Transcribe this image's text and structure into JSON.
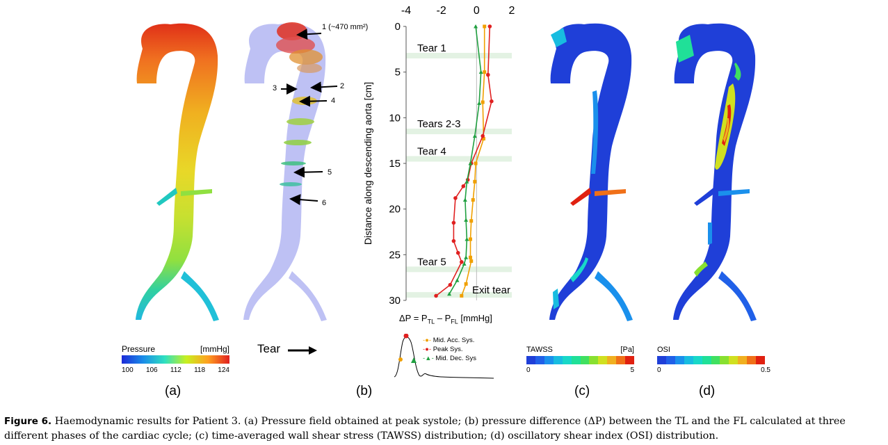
{
  "panels": {
    "a": {
      "label": "(a)",
      "colorbar": {
        "title": "Pressure",
        "unit": "[mmHg]",
        "ticks": [
          "100",
          "106",
          "112",
          "118",
          "124"
        ],
        "colors": [
          "#1c2ad8",
          "#1a8de8",
          "#2fe0c0",
          "#c8f020",
          "#ffa020",
          "#e02020"
        ]
      }
    },
    "b": {
      "label": "(b)",
      "tear_legend": "Tear",
      "slice_labels": [
        "1 (~470 mm²)",
        "2",
        "3",
        "4",
        "5",
        "6"
      ]
    },
    "c": {
      "label": "(c)",
      "colorbar": {
        "title": "TAWSS",
        "unit": "[Pa]",
        "min": "0",
        "max": "5",
        "colors": [
          "#1f3fd8",
          "#2060e8",
          "#1a90ec",
          "#18bce0",
          "#18d8c8",
          "#20e098",
          "#40e060",
          "#88e030",
          "#d0e020",
          "#f0b020",
          "#f07018",
          "#e02010"
        ]
      }
    },
    "d": {
      "label": "(d)",
      "colorbar": {
        "title": "OSI",
        "min": "0",
        "max": "0.5",
        "colors": [
          "#1f3fd8",
          "#2060e8",
          "#1a90ec",
          "#18bce0",
          "#18d8c8",
          "#20e098",
          "#40e060",
          "#88e030",
          "#d0e020",
          "#f0b020",
          "#f07018",
          "#e02010"
        ]
      }
    }
  },
  "chart_data": {
    "type": "line",
    "xlabel_html": "ΔP = P<sub>TL</sub> – P<sub>FL</sub> [mmHg]",
    "ylabel": "Distance along descending aorta  [cm]",
    "x_ticks": [
      "-4",
      "-2",
      "0",
      "2"
    ],
    "y_ticks": [
      "0",
      "5",
      "10",
      "15",
      "20",
      "25",
      "30"
    ],
    "xlim": [
      -4,
      2
    ],
    "ylim": [
      0,
      30
    ],
    "x_axis_position": "top",
    "y_inverted": true,
    "tears": [
      {
        "label": "Tear 1",
        "y": 3.2
      },
      {
        "label": "Tears 2-3",
        "y": 11.5
      },
      {
        "label": "Tear 4",
        "y": 14.5
      },
      {
        "label": "Tear 5",
        "y": 26.6
      },
      {
        "label": "Exit tear",
        "y": 29.4
      }
    ],
    "series": [
      {
        "name": "Mid. Acc. Sys.",
        "color": "#f0a000",
        "points": [
          [
            0.45,
            0
          ],
          [
            0.45,
            5
          ],
          [
            0.35,
            8.3
          ],
          [
            0.4,
            12.3
          ],
          [
            -0.05,
            15
          ],
          [
            -0.1,
            17
          ],
          [
            -0.2,
            19
          ],
          [
            -0.3,
            21.3
          ],
          [
            -0.35,
            23.3
          ],
          [
            -0.35,
            25.3
          ],
          [
            -0.3,
            25.7
          ],
          [
            -0.6,
            28.2
          ],
          [
            -0.85,
            29.5
          ]
        ]
      },
      {
        "name": "Peak Sys.",
        "color": "#e02020",
        "points": [
          [
            0.75,
            0
          ],
          [
            0.65,
            5.3
          ],
          [
            0.85,
            8.2
          ],
          [
            0.35,
            12
          ],
          [
            -0.3,
            15
          ],
          [
            -0.5,
            16.8
          ],
          [
            -0.75,
            17.5
          ],
          [
            -1.2,
            18.8
          ],
          [
            -1.3,
            21.5
          ],
          [
            -1.3,
            23.5
          ],
          [
            -1.05,
            24.8
          ],
          [
            -0.85,
            25.8
          ],
          [
            -1.5,
            28.3
          ],
          [
            -2.3,
            29.5
          ]
        ]
      },
      {
        "name": "Mid. Dec. Sys",
        "color": "#20a040",
        "points": [
          [
            -0.05,
            0
          ],
          [
            0.25,
            5
          ],
          [
            0.15,
            8.4
          ],
          [
            -0.1,
            12
          ],
          [
            -0.35,
            15
          ],
          [
            -0.55,
            17
          ],
          [
            -0.65,
            19
          ],
          [
            -0.6,
            21.2
          ],
          [
            -0.55,
            23.3
          ],
          [
            -0.6,
            25.3
          ],
          [
            -0.7,
            26
          ],
          [
            -1.1,
            27.8
          ],
          [
            -1.55,
            29.3
          ]
        ]
      }
    ]
  },
  "caption": {
    "label": "Figure 6.",
    "text": " Haemodynamic results for Patient 3. (a) Pressure field obtained at peak systole; (b) pressure difference (ΔP) between the TL and the FL calculated at three different phases of the cardiac cycle; (c) time-averaged wall shear stress (TAWSS) distribution; (d) oscillatory shear index (OSI) distribution."
  }
}
